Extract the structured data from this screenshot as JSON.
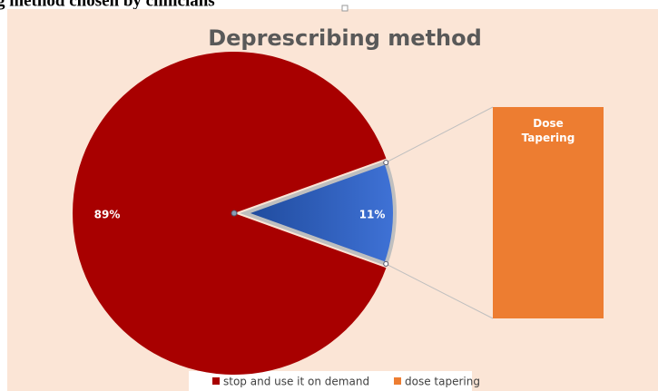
{
  "heading": "g method chosen by clinicians",
  "chart_data": {
    "type": "pie-of-bar",
    "title": "Deprescribing method",
    "categories": [
      "stop and use it on demand",
      "dose tapering"
    ],
    "values": [
      89,
      11
    ],
    "value_labels": [
      "89%",
      "11%"
    ],
    "colors": [
      "#a80000",
      "#3a67c6"
    ],
    "bar_label": "Dose Tapering",
    "bar_color": "#ed7d31",
    "legend": "bottom"
  }
}
